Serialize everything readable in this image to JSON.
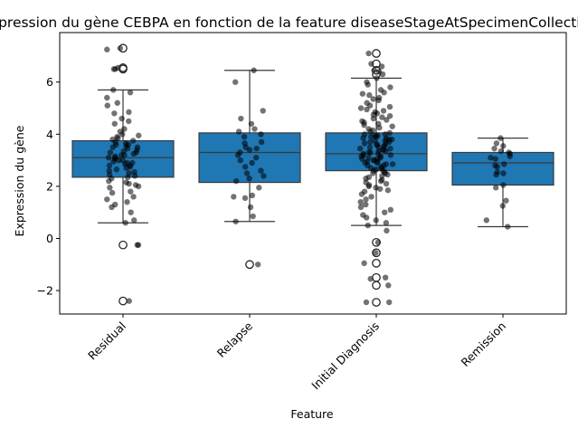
{
  "chart_data": {
    "type": "box",
    "title": "Expression du gène CEBPA en fonction de la feature diseaseStageAtSpecimenCollection",
    "xlabel": "Feature",
    "ylabel": "Expression du gène",
    "ylim": [
      -2.9,
      7.9
    ],
    "yticks": [
      -2,
      0,
      2,
      4,
      6
    ],
    "categories": [
      "Residual",
      "Relapse",
      "Initial Diagnosis",
      "Remission"
    ],
    "box_color": "#1f77b4",
    "point_color": "#000000",
    "grid": false,
    "legend": "none",
    "boxes": [
      {
        "category": "Residual",
        "whisker_low": 0.6,
        "q1": 2.35,
        "median": 3.1,
        "q3": 3.75,
        "whisker_high": 5.7,
        "outliers": [
          7.3,
          6.55,
          6.5,
          -0.25,
          -2.4
        ]
      },
      {
        "category": "Relapse",
        "whisker_low": 0.65,
        "q1": 2.15,
        "median": 3.3,
        "q3": 4.05,
        "whisker_high": 6.45,
        "outliers": [
          -1.0
        ]
      },
      {
        "category": "Initial Diagnosis",
        "whisker_low": 0.5,
        "q1": 2.6,
        "median": 3.25,
        "q3": 4.05,
        "whisker_high": 6.15,
        "outliers": [
          7.1,
          6.7,
          6.45,
          6.3,
          -0.15,
          -0.55,
          -0.95,
          -1.5,
          -1.8,
          -2.45
        ]
      },
      {
        "category": "Remission",
        "whisker_low": 0.45,
        "q1": 2.05,
        "median": 2.9,
        "q3": 3.3,
        "whisker_high": 3.85,
        "outliers": []
      }
    ],
    "points": [
      {
        "category": "Residual",
        "values": [
          7.3,
          7.25,
          6.55,
          6.5,
          6.5,
          5.7,
          5.6,
          5.4,
          5.1,
          5.2,
          4.85,
          4.8,
          4.6,
          4.5,
          4.4,
          4.2,
          4.1,
          4.0,
          3.95,
          3.9,
          3.85,
          3.8,
          3.75,
          3.7,
          3.65,
          3.6,
          3.6,
          3.55,
          3.5,
          3.5,
          3.45,
          3.4,
          3.35,
          3.3,
          3.3,
          3.25,
          3.2,
          3.2,
          3.15,
          3.1,
          3.1,
          3.05,
          3.0,
          3.0,
          2.95,
          2.9,
          2.9,
          2.85,
          2.8,
          2.8,
          2.75,
          2.7,
          2.65,
          2.6,
          2.55,
          2.5,
          2.45,
          2.4,
          2.35,
          2.3,
          2.2,
          2.15,
          2.1,
          2.05,
          2.0,
          1.95,
          1.8,
          1.75,
          1.6,
          1.5,
          1.4,
          1.3,
          1.2,
          1.0,
          0.7,
          0.6,
          -0.25,
          -0.25,
          -2.4
        ]
      },
      {
        "category": "Relapse",
        "values": [
          6.45,
          6.0,
          4.9,
          4.6,
          4.4,
          4.2,
          4.1,
          4.0,
          3.9,
          3.7,
          3.65,
          3.5,
          3.45,
          3.4,
          3.3,
          3.2,
          3.1,
          3.0,
          2.9,
          2.75,
          2.6,
          2.5,
          2.4,
          2.3,
          2.2,
          1.95,
          1.65,
          1.6,
          1.55,
          1.2,
          0.85,
          0.65,
          -1.0
        ]
      },
      {
        "category": "Initial Diagnosis",
        "values": [
          7.1,
          6.7,
          6.6,
          6.45,
          6.4,
          6.3,
          6.15,
          6.0,
          5.9,
          5.8,
          5.7,
          5.6,
          5.55,
          5.5,
          5.4,
          5.35,
          5.3,
          5.2,
          5.1,
          5.05,
          5.0,
          4.95,
          4.9,
          4.85,
          4.8,
          4.75,
          4.7,
          4.65,
          4.6,
          4.55,
          4.5,
          4.45,
          4.4,
          4.35,
          4.3,
          4.25,
          4.2,
          4.15,
          4.1,
          4.05,
          4.0,
          4.0,
          3.95,
          3.95,
          3.9,
          3.9,
          3.85,
          3.85,
          3.8,
          3.8,
          3.75,
          3.75,
          3.7,
          3.7,
          3.65,
          3.65,
          3.6,
          3.6,
          3.55,
          3.55,
          3.5,
          3.5,
          3.45,
          3.45,
          3.4,
          3.4,
          3.35,
          3.35,
          3.3,
          3.3,
          3.25,
          3.25,
          3.2,
          3.2,
          3.15,
          3.15,
          3.1,
          3.1,
          3.05,
          3.05,
          3.0,
          3.0,
          2.95,
          2.95,
          2.9,
          2.9,
          2.85,
          2.85,
          2.8,
          2.8,
          2.75,
          2.7,
          2.7,
          2.65,
          2.6,
          2.6,
          2.55,
          2.5,
          2.5,
          2.45,
          2.4,
          2.35,
          2.3,
          2.25,
          2.2,
          2.15,
          2.1,
          2.05,
          2.0,
          1.95,
          1.9,
          1.85,
          1.8,
          1.7,
          1.6,
          1.5,
          1.4,
          1.3,
          1.2,
          1.1,
          1.0,
          0.9,
          0.8,
          0.7,
          0.6,
          0.5,
          0.3,
          -0.15,
          -0.55,
          -0.95,
          -1.5,
          -1.55,
          -1.8,
          -2.45,
          -2.45
        ]
      },
      {
        "category": "Remission",
        "values": [
          3.85,
          3.65,
          3.55,
          3.45,
          3.35,
          3.3,
          3.25,
          3.15,
          3.1,
          3.05,
          2.85,
          2.8,
          2.75,
          2.55,
          2.5,
          2.45,
          2.05,
          1.95,
          1.45,
          1.25,
          0.7,
          0.45
        ]
      }
    ]
  }
}
